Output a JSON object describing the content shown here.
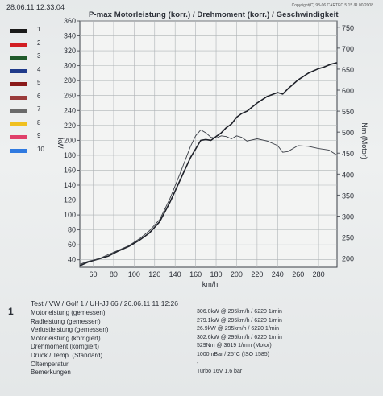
{
  "header": {
    "date": "28.06.11 12:33:04",
    "copyright": "Copyright(C) 98-06 CARTEC 5.15 /R 00/2008",
    "title": "P-max Motorleistung (korr.) / Drehmoment (korr.) / Geschwindigkeit"
  },
  "legend": [
    {
      "num": "1",
      "color": "#1a1a1a"
    },
    {
      "num": "2",
      "color": "#d21e22"
    },
    {
      "num": "3",
      "color": "#1f5a2a"
    },
    {
      "num": "4",
      "color": "#1f3a8a"
    },
    {
      "num": "5",
      "color": "#8a1a1a"
    },
    {
      "num": "6",
      "color": "#9a3b3b"
    },
    {
      "num": "7",
      "color": "#6a6a6a"
    },
    {
      "num": "8",
      "color": "#f0c020"
    },
    {
      "num": "9",
      "color": "#e0406a"
    },
    {
      "num": "10",
      "color": "#2f7ae0"
    }
  ],
  "chart_data": {
    "type": "line",
    "title": "P-max Motorleistung (korr.) / Drehmoment (korr.) / Geschwindigkeit",
    "xlabel": "km/h",
    "ylabel_left": "kW",
    "ylabel_right": "Nm (Motor)",
    "xlim": [
      47,
      298
    ],
    "xticks": [
      60,
      80,
      100,
      120,
      140,
      160,
      180,
      200,
      220,
      240,
      260,
      280
    ],
    "ylim_left": [
      30,
      360
    ],
    "yticks_left": [
      40,
      60,
      80,
      100,
      120,
      140,
      160,
      180,
      200,
      220,
      240,
      260,
      280,
      300,
      320,
      340,
      360
    ],
    "ylim_right": [
      178,
      765
    ],
    "yticks_right": [
      200,
      250,
      300,
      350,
      400,
      450,
      500,
      550,
      600,
      650,
      700,
      750
    ],
    "grid": true,
    "series": [
      {
        "name": "",
        "axis": "left",
        "x": [
          47,
          55,
          65,
          75,
          85,
          95,
          105,
          115,
          125,
          135,
          145,
          155,
          165,
          170,
          175,
          180,
          185,
          190,
          195,
          200,
          205,
          210,
          220,
          230,
          240,
          245,
          250,
          260,
          270,
          280,
          285,
          292,
          298
        ],
        "y": [
          32,
          37,
          41,
          45,
          52,
          58,
          66,
          76,
          91,
          117,
          147,
          177,
          200,
          201,
          200,
          205,
          210,
          217,
          222,
          231,
          236,
          239,
          250,
          259,
          264,
          262,
          269,
          281,
          290,
          296,
          298,
          302,
          304
        ]
      },
      {
        "name": "",
        "axis": "left",
        "x": [
          47,
          55,
          65,
          75,
          85,
          95,
          105,
          115,
          125,
          135,
          145,
          155,
          160,
          165,
          170,
          175,
          180,
          185,
          190,
          195,
          200,
          205,
          210,
          220,
          230,
          240,
          245,
          250,
          260,
          270,
          280,
          290,
          298
        ],
        "y": [
          34,
          38,
          41,
          47,
          53,
          59,
          68,
          79,
          94,
          122,
          156,
          192,
          206,
          214,
          210,
          204,
          203,
          206,
          205,
          202,
          206,
          204,
          199,
          202,
          199,
          193,
          184,
          185,
          193,
          192,
          189,
          187,
          180
        ]
      }
    ]
  },
  "results": {
    "header_line": "Test / VW / Golf 1 / UH-JJ 66 / 26.06.11 11:12:26",
    "index": "1",
    "rows": [
      {
        "label": "Motorleistung (gemessen)",
        "value": "306.0kW @ 295km/h / 6220 1/min"
      },
      {
        "label": "Radleistung (gemessen)",
        "value": "279.1kW @ 295km/h / 6220 1/min"
      },
      {
        "label": "Verlustleistung (gemessen)",
        "value": "26.9kW @ 295km/h / 6220 1/min"
      },
      {
        "label": "Motorleistung (korrigiert)",
        "value": "302.6kW @ 295km/h / 6220 1/min"
      },
      {
        "label": "Drehmoment (korrigiert)",
        "value": "529Nm @ 3619 1/min (Motor)"
      },
      {
        "label": "Druck / Temp. (Standard)",
        "value": "1000mBar / 25°C  (ISO 1585)"
      },
      {
        "label": "Öltemperatur",
        "value": "-"
      },
      {
        "label": "Bemerkungen",
        "value": "Turbo 16V 1,6 bar"
      }
    ]
  }
}
